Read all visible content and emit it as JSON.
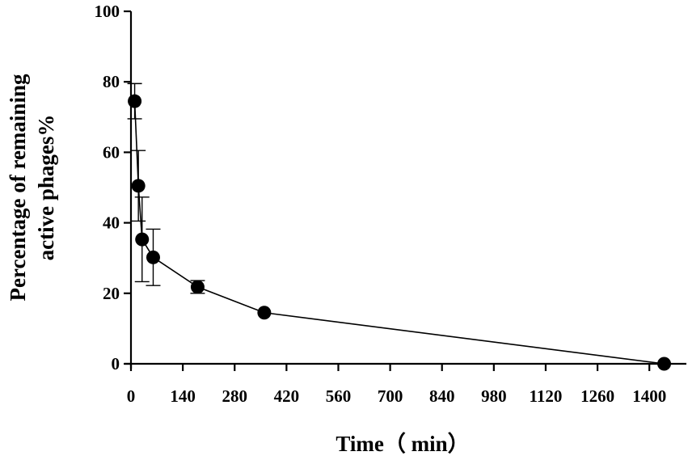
{
  "chart_data": {
    "type": "line",
    "title": "",
    "xlabel": "Time（ min）",
    "ylabel_lines": [
      "Percentage of remaining",
      "active phages%"
    ],
    "xlim": [
      0,
      1500
    ],
    "ylim": [
      0,
      100
    ],
    "xticks": [
      "0",
      "140",
      "280",
      "420",
      "560",
      "700",
      "840",
      "980",
      "1120",
      "1260",
      "1400"
    ],
    "yticks": [
      "0",
      "20",
      "40",
      "60",
      "80",
      "100"
    ],
    "series": [
      {
        "x": [
          10,
          20,
          30,
          60,
          180,
          360,
          1440
        ],
        "y": [
          74.5,
          50.5,
          35.3,
          30.2,
          21.8,
          14.5,
          0
        ],
        "err": [
          5,
          10,
          12,
          8,
          1.8,
          0,
          0
        ]
      }
    ],
    "grid": false,
    "colors": {
      "line": "#000000",
      "marker": "#000000"
    }
  }
}
